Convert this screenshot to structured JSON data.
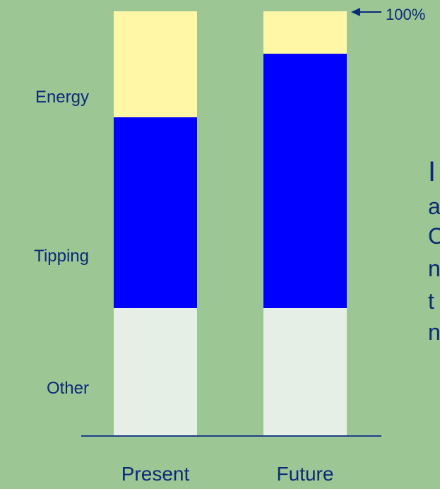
{
  "chart_data": {
    "type": "bar",
    "stacked": true,
    "categories": [
      "Present",
      "Future"
    ],
    "series": [
      {
        "name": "Other",
        "values": [
          0.3,
          0.3
        ],
        "color": "#e6efe6"
      },
      {
        "name": "Tipping",
        "values": [
          0.45,
          0.6
        ],
        "color": "#0000ff"
      },
      {
        "name": "Energy",
        "values": [
          0.25,
          0.1
        ],
        "color": "#fff7a6"
      }
    ],
    "ylim": [
      0,
      1
    ],
    "grid": false,
    "legend_placement": "left (labels beside bars)",
    "annotations": [
      {
        "text": "100%",
        "target": "top of stack",
        "arrow": "left"
      }
    ],
    "colors": {
      "background": "#9cc694",
      "axis": "#1f3f8a",
      "text": "#0b2a78"
    }
  },
  "sidebar_fragments": [
    "I",
    "a",
    "C",
    "n",
    "t",
    "n"
  ]
}
